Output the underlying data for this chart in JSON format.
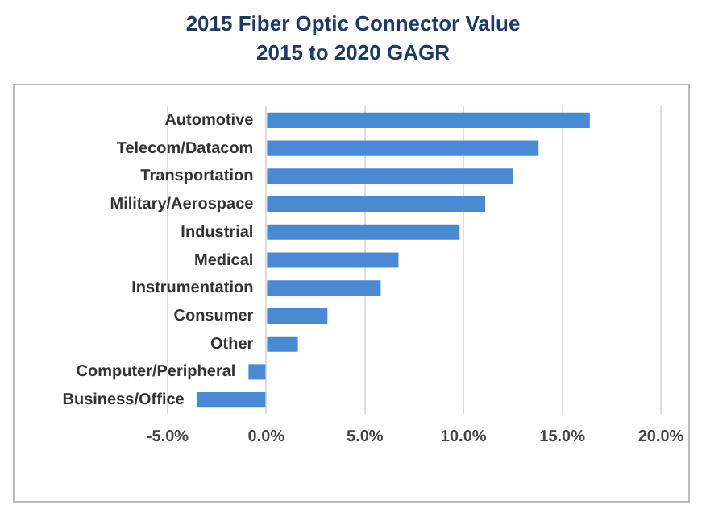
{
  "chart_data": {
    "type": "bar",
    "orientation": "horizontal",
    "title": "2015 Fiber Optic Connector Value",
    "subtitle": "2015 to 2020 GAGR",
    "categories": [
      "Automotive",
      "Telecom/Datacom",
      "Transportation",
      "Military/Aerospace",
      "Industrial",
      "Medical",
      "Instrumentation",
      "Consumer",
      "Other",
      "Computer/Peripheral",
      "Business/Office"
    ],
    "values": [
      16.4,
      13.8,
      12.5,
      11.1,
      9.8,
      6.7,
      5.8,
      3.1,
      1.6,
      -0.9,
      -3.5
    ],
    "color": "#4a8ad4",
    "xlim": [
      -5,
      20
    ],
    "xticks": [
      {
        "value": -5,
        "label": "-5.0%"
      },
      {
        "value": 0,
        "label": "0.0%"
      },
      {
        "value": 5,
        "label": "5.0%"
      },
      {
        "value": 10,
        "label": "10.0%"
      },
      {
        "value": 15,
        "label": "15.0%"
      },
      {
        "value": 20,
        "label": "20.0%"
      }
    ],
    "grid": "x"
  }
}
